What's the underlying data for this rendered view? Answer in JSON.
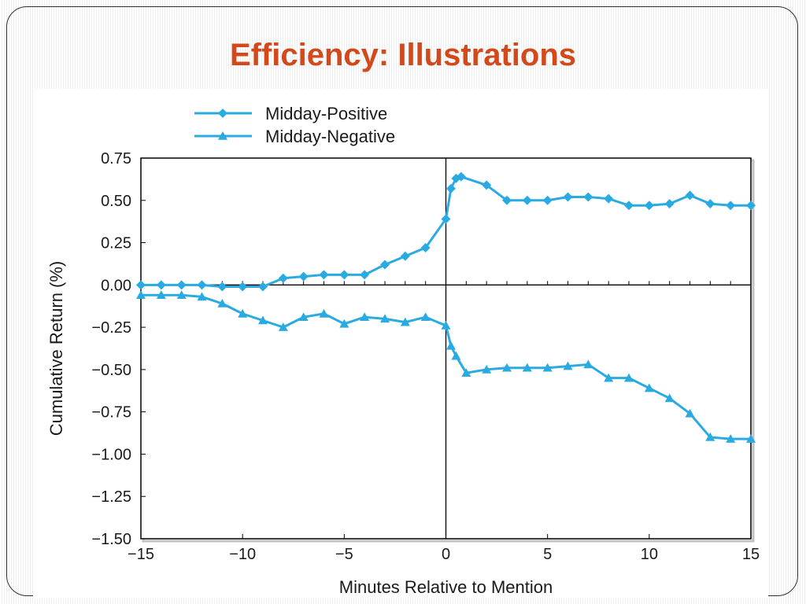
{
  "slide": {
    "title": "Efficiency: Illustrations"
  },
  "colors": {
    "title": "#d2491b",
    "series": "#29abe2",
    "axis": "#000000"
  },
  "chart_data": {
    "type": "line",
    "title": "",
    "xlabel": "Minutes Relative to Mention",
    "ylabel": "Cumulative Return (%)",
    "xlim": [
      -15,
      15
    ],
    "ylim": [
      -1.5,
      0.75
    ],
    "x_ticks": [
      -15,
      -10,
      -5,
      0,
      5,
      10,
      15
    ],
    "x_tick_labels": [
      "−15",
      "−10",
      "−5",
      "0",
      "5",
      "10",
      "15"
    ],
    "y_ticks": [
      0.75,
      0.5,
      0.25,
      0,
      -0.25,
      -0.5,
      -0.75,
      -1.0,
      -1.25,
      -1.5
    ],
    "y_tick_labels": [
      "0.75",
      "0.50",
      "0.25",
      "0.00",
      "−0.25",
      "−0.50",
      "−0.75",
      "−1.00",
      "−1.25",
      "−1.50"
    ],
    "legend_position": "top-left",
    "grid": false,
    "series": [
      {
        "name": "Midday-Positive",
        "marker": "diamond",
        "points": [
          [
            -15,
            0.0
          ],
          [
            -14,
            0.0
          ],
          [
            -13,
            0.0
          ],
          [
            -12,
            0.0
          ],
          [
            -11,
            -0.01
          ],
          [
            -10,
            -0.01
          ],
          [
            -9,
            -0.01
          ],
          [
            -8,
            0.04
          ],
          [
            -7,
            0.05
          ],
          [
            -6,
            0.06
          ],
          [
            -5,
            0.06
          ],
          [
            -4,
            0.06
          ],
          [
            -3,
            0.12
          ],
          [
            -2,
            0.17
          ],
          [
            -1,
            0.22
          ],
          [
            0,
            0.39
          ],
          [
            0.25,
            0.57
          ],
          [
            0.5,
            0.63
          ],
          [
            0.75,
            0.64
          ],
          [
            2,
            0.59
          ],
          [
            3,
            0.5
          ],
          [
            4,
            0.5
          ],
          [
            5,
            0.5
          ],
          [
            6,
            0.52
          ],
          [
            7,
            0.52
          ],
          [
            8,
            0.51
          ],
          [
            9,
            0.47
          ],
          [
            10,
            0.47
          ],
          [
            11,
            0.48
          ],
          [
            12,
            0.53
          ],
          [
            13,
            0.48
          ],
          [
            14,
            0.47
          ],
          [
            15,
            0.47
          ]
        ]
      },
      {
        "name": "Midday-Negative",
        "marker": "triangle",
        "points": [
          [
            -15,
            -0.06
          ],
          [
            -14,
            -0.06
          ],
          [
            -13,
            -0.06
          ],
          [
            -12,
            -0.07
          ],
          [
            -11,
            -0.11
          ],
          [
            -10,
            -0.17
          ],
          [
            -9,
            -0.21
          ],
          [
            -8,
            -0.25
          ],
          [
            -7,
            -0.19
          ],
          [
            -6,
            -0.17
          ],
          [
            -5,
            -0.23
          ],
          [
            -4,
            -0.19
          ],
          [
            -3,
            -0.2
          ],
          [
            -2,
            -0.22
          ],
          [
            -1,
            -0.19
          ],
          [
            0,
            -0.24
          ],
          [
            0.25,
            -0.36
          ],
          [
            0.5,
            -0.42
          ],
          [
            1,
            -0.52
          ],
          [
            2,
            -0.5
          ],
          [
            3,
            -0.49
          ],
          [
            4,
            -0.49
          ],
          [
            5,
            -0.49
          ],
          [
            6,
            -0.48
          ],
          [
            7,
            -0.47
          ],
          [
            8,
            -0.55
          ],
          [
            9,
            -0.55
          ],
          [
            10,
            -0.61
          ],
          [
            11,
            -0.67
          ],
          [
            12,
            -0.76
          ],
          [
            13,
            -0.9
          ],
          [
            14,
            -0.91
          ],
          [
            15,
            -0.91
          ]
        ]
      }
    ]
  }
}
